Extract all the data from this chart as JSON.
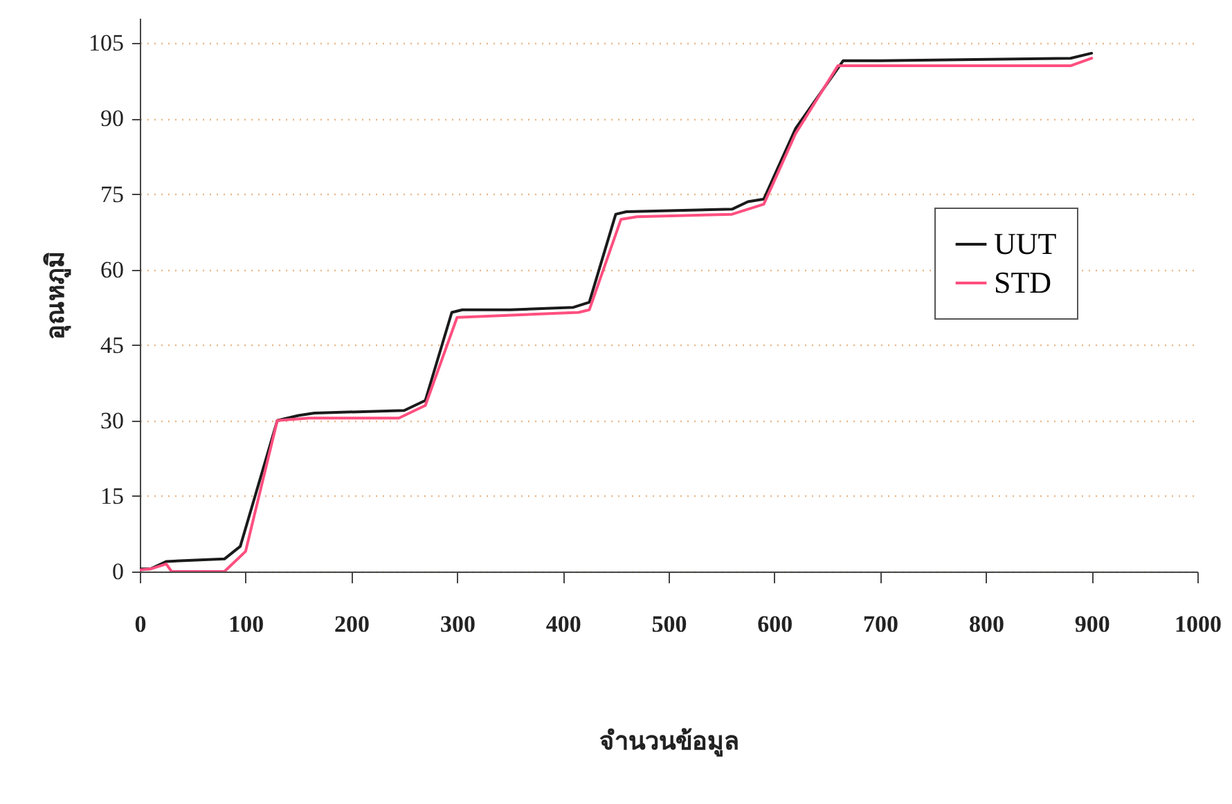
{
  "chart_data": {
    "type": "line",
    "xlabel": "จำนวนข้อมูล",
    "ylabel": "อุณหภูมิ",
    "xlim": [
      0,
      1000
    ],
    "xticks": [
      0,
      100,
      200,
      300,
      400,
      500,
      600,
      700,
      800,
      900,
      1000
    ],
    "ylim": [
      0,
      110
    ],
    "yticks": [
      0,
      15,
      30,
      45,
      60,
      75,
      90,
      105
    ],
    "grid": "y",
    "legend": "right",
    "line_style": "solid",
    "marker": "none",
    "series": [
      {
        "name": "UUT",
        "color": "#1a1a1a",
        "x": [
          0,
          10,
          25,
          80,
          95,
          130,
          150,
          165,
          250,
          270,
          295,
          305,
          350,
          410,
          425,
          450,
          460,
          560,
          575,
          590,
          620,
          665,
          700,
          880,
          900
        ],
        "values": [
          0.5,
          0.5,
          2,
          2.5,
          5,
          30,
          31,
          31.5,
          32,
          34,
          51.5,
          52,
          52,
          52.5,
          53.5,
          71,
          71.5,
          72,
          73.5,
          74,
          88,
          101.5,
          101.5,
          102,
          103
        ]
      },
      {
        "name": "STD",
        "color": "#ff4f7f",
        "x": [
          0,
          10,
          25,
          30,
          80,
          90,
          100,
          130,
          160,
          245,
          260,
          270,
          300,
          415,
          425,
          455,
          470,
          560,
          575,
          590,
          620,
          660,
          880,
          900
        ],
        "values": [
          0.3,
          0.5,
          1.5,
          0,
          0,
          2,
          4,
          30,
          30.5,
          30.5,
          32,
          33,
          50.5,
          51.5,
          52,
          70,
          70.5,
          71,
          72,
          73,
          87,
          100.5,
          100.5,
          102
        ]
      }
    ]
  }
}
